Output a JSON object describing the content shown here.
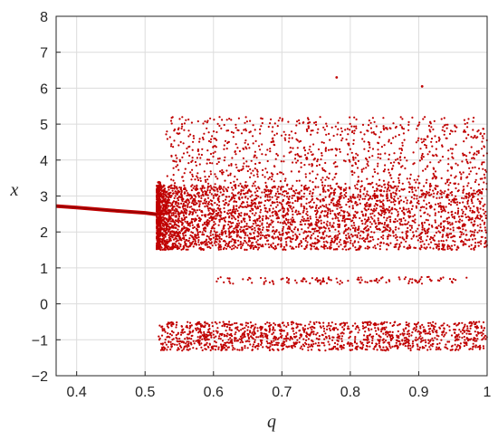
{
  "chart_data": {
    "type": "scatter",
    "xlabel": "q",
    "ylabel": "x",
    "xlim": [
      0.37,
      1.0
    ],
    "ylim": [
      -2,
      8
    ],
    "x_ticks": [
      0.4,
      0.5,
      0.6,
      0.7,
      0.8,
      0.9,
      1
    ],
    "x_tick_labels": [
      "0.4",
      "0.5",
      "0.6",
      "0.7",
      "0.8",
      "0.9",
      "1"
    ],
    "y_ticks": [
      -2,
      -1,
      0,
      1,
      2,
      3,
      4,
      5,
      6,
      7,
      8
    ],
    "y_tick_labels": [
      "−2",
      "−1",
      "0",
      "1",
      "2",
      "3",
      "4",
      "5",
      "6",
      "7",
      "8"
    ],
    "grid": true,
    "point_color": "#c00000",
    "periodic_branch": {
      "q": [
        0.37,
        0.4,
        0.45,
        0.5,
        0.517
      ],
      "x": [
        2.72,
        2.68,
        2.6,
        2.53,
        2.49
      ]
    },
    "chaotic_regime": {
      "q_range": [
        0.517,
        1.0
      ],
      "bands": [
        {
          "x_range": [
            1.5,
            3.3
          ],
          "q_range": [
            0.517,
            1.0
          ]
        },
        {
          "x_range": [
            3.3,
            5.2
          ],
          "q_range": [
            0.53,
            1.0
          ]
        },
        {
          "x_range": [
            -1.3,
            -0.5
          ],
          "q_range": [
            0.52,
            1.0
          ]
        },
        {
          "x_range": [
            0.55,
            0.75
          ],
          "q_range": [
            0.6,
            0.97
          ]
        }
      ],
      "outliers": [
        {
          "q": 0.78,
          "x": 6.3
        },
        {
          "q": 0.905,
          "x": 6.05
        }
      ]
    }
  }
}
